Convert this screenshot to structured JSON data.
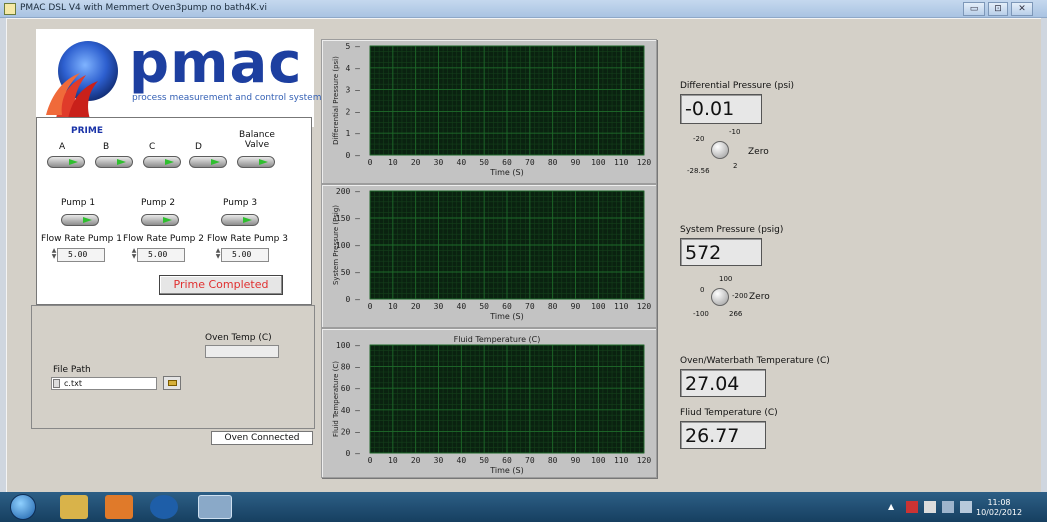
{
  "window": {
    "title": "PMAC DSL V4 with Memmert Oven3pump no bath4K.vi",
    "buttons": [
      "▭",
      "⊡",
      "✕"
    ]
  },
  "logo": {
    "wordmark": "pmac",
    "tagline": "process measurement and control systems"
  },
  "prime": {
    "heading": "PRIME",
    "valves": [
      {
        "label": "A",
        "on": true
      },
      {
        "label": "B",
        "on": true
      },
      {
        "label": "C",
        "on": true
      },
      {
        "label": "D",
        "on": true
      },
      {
        "label": "Balance Valve",
        "on": true
      }
    ],
    "pumps": [
      {
        "label": "Pump 1",
        "on": true
      },
      {
        "label": "Pump 2",
        "on": true
      },
      {
        "label": "Pump 3",
        "on": true
      }
    ],
    "flow_rates": [
      {
        "label": "Flow Rate Pump 1",
        "value": "5.00"
      },
      {
        "label": "Flow Rate Pump 2",
        "value": "5.00"
      },
      {
        "label": "Flow Rate Pump 3",
        "value": "5.00"
      }
    ],
    "status_button": "Prime Completed"
  },
  "oven": {
    "temp_label": "Oven Temp (C)",
    "temp_value": "",
    "connected": "Oven Connected"
  },
  "file": {
    "label": "File Path",
    "value": "c.txt"
  },
  "readouts": {
    "diff_pressure": {
      "label": "Differential Pressure (psi)",
      "value": "-0.01"
    },
    "system_pressure": {
      "label": "System Pressure (psig)",
      "value": "572"
    },
    "oven_temp": {
      "label": "Oven/Waterbath Temperature (C)",
      "value": "27.04"
    },
    "fluid_temp": {
      "label": "Fliud Temperature (C)",
      "value": "26.77"
    }
  },
  "knobs": {
    "diff": {
      "ticks": [
        "-20",
        "-10",
        "-28.56",
        "2"
      ],
      "label": "Zero"
    },
    "system": {
      "ticks": [
        "100",
        "0",
        "-200",
        "-100",
        "266"
      ],
      "label": "Zero"
    }
  },
  "chart_data": [
    {
      "type": "line",
      "title": "",
      "xlabel": "Time (S)",
      "ylabel": "Differential Pressure (psi)",
      "xlim": [
        0,
        120
      ],
      "ylim": [
        0,
        5
      ],
      "xticks": [
        "0",
        "10",
        "20",
        "30",
        "40",
        "50",
        "60",
        "70",
        "80",
        "90",
        "100",
        "110",
        "120"
      ],
      "yticks": [
        "0",
        "1",
        "2",
        "3",
        "4",
        "5"
      ],
      "series": [],
      "grid": true,
      "plot_bg": "#0a2210",
      "grid_color": "#1e6a2a"
    },
    {
      "type": "line",
      "title": "",
      "xlabel": "Time (S)",
      "ylabel": "System Pressure (Psig)",
      "xlim": [
        0,
        120
      ],
      "ylim": [
        0,
        200
      ],
      "xticks": [
        "0",
        "10",
        "20",
        "30",
        "40",
        "50",
        "60",
        "70",
        "80",
        "90",
        "100",
        "110",
        "120"
      ],
      "yticks": [
        "0",
        "50",
        "100",
        "150",
        "200"
      ],
      "series": [],
      "grid": true,
      "plot_bg": "#0a2210",
      "grid_color": "#1e6a2a"
    },
    {
      "type": "line",
      "title": "Fluid Temperature (C)",
      "xlabel": "Time (S)",
      "ylabel": "Fluid Temperature (C)",
      "xlim": [
        0,
        120
      ],
      "ylim": [
        0,
        100
      ],
      "xticks": [
        "0",
        "10",
        "20",
        "30",
        "40",
        "50",
        "60",
        "70",
        "80",
        "90",
        "100",
        "110",
        "120"
      ],
      "yticks": [
        "0",
        "20",
        "40",
        "60",
        "80",
        "100"
      ],
      "series": [],
      "grid": true,
      "plot_bg": "#0a2210",
      "grid_color": "#1e6a2a"
    }
  ],
  "taskbar": {
    "time": "11:08",
    "date": "10/02/2012"
  }
}
